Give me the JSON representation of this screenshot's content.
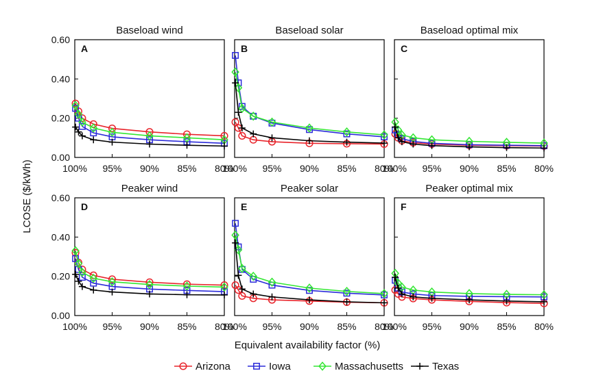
{
  "figure": {
    "ylabel": "LCOSE ($/kWh)",
    "xlabel": "Equivalent availability factor (%)"
  },
  "legend": [
    {
      "name": "Arizona",
      "color": "#e8232a",
      "marker": "circle"
    },
    {
      "name": "Iowa",
      "color": "#2b2bd9",
      "marker": "square"
    },
    {
      "name": "Massachusetts",
      "color": "#33e633",
      "marker": "diamond"
    },
    {
      "name": "Texas",
      "color": "#000000",
      "marker": "plus"
    }
  ],
  "axes": {
    "x_ticks": [
      100,
      95,
      90,
      85,
      80
    ],
    "x_tick_labels": [
      "100%",
      "95%",
      "90%",
      "85%",
      "80%"
    ],
    "y_ticks": [
      0,
      0.2,
      0.4,
      0.6
    ],
    "y_tick_labels": [
      "0.00",
      "0.20",
      "0.40",
      "0.60"
    ]
  },
  "chart_data": [
    {
      "type": "line",
      "title": "Baseload wind",
      "panel_letter": "A",
      "xlim": [
        100,
        80
      ],
      "ylim": [
        0,
        0.6
      ],
      "grid": false,
      "x": [
        99.9,
        99.5,
        99,
        97.5,
        95,
        90,
        85,
        80
      ],
      "series": [
        {
          "name": "Arizona",
          "values": [
            0.275,
            0.235,
            0.2,
            0.17,
            0.148,
            0.13,
            0.118,
            0.11
          ]
        },
        {
          "name": "Iowa",
          "values": [
            0.25,
            0.2,
            0.158,
            0.125,
            0.105,
            0.09,
            0.08,
            0.072
          ]
        },
        {
          "name": "Massachusetts",
          "values": [
            0.265,
            0.22,
            0.18,
            0.15,
            0.128,
            0.11,
            0.1,
            0.09
          ]
        },
        {
          "name": "Texas",
          "values": [
            0.155,
            0.13,
            0.11,
            0.09,
            0.078,
            0.068,
            0.062,
            0.058
          ]
        }
      ]
    },
    {
      "type": "line",
      "title": "Baseload solar",
      "panel_letter": "B",
      "xlim": [
        100,
        80
      ],
      "ylim": [
        0,
        0.6
      ],
      "grid": false,
      "x": [
        99.9,
        99.5,
        99,
        97.5,
        95,
        90,
        85,
        80
      ],
      "series": [
        {
          "name": "Arizona",
          "values": [
            0.18,
            0.15,
            0.11,
            0.09,
            0.08,
            0.072,
            0.07,
            0.068
          ]
        },
        {
          "name": "Iowa",
          "values": [
            0.52,
            0.38,
            0.26,
            0.21,
            0.175,
            0.142,
            0.12,
            0.105
          ]
        },
        {
          "name": "Massachusetts",
          "values": [
            0.435,
            0.355,
            0.25,
            0.21,
            0.18,
            0.15,
            0.13,
            0.115
          ]
        },
        {
          "name": "Texas",
          "values": [
            0.38,
            0.23,
            0.15,
            0.12,
            0.1,
            0.085,
            0.078,
            0.073
          ]
        }
      ]
    },
    {
      "type": "line",
      "title": "Baseload optimal mix",
      "panel_letter": "C",
      "xlim": [
        100,
        80
      ],
      "ylim": [
        0,
        0.6
      ],
      "grid": false,
      "x": [
        99.9,
        99.5,
        99,
        97.5,
        95,
        90,
        85,
        80
      ],
      "series": [
        {
          "name": "Arizona",
          "values": [
            0.12,
            0.1,
            0.085,
            0.075,
            0.068,
            0.062,
            0.06,
            0.058
          ]
        },
        {
          "name": "Iowa",
          "values": [
            0.14,
            0.115,
            0.095,
            0.082,
            0.072,
            0.065,
            0.062,
            0.06
          ]
        },
        {
          "name": "Massachusetts",
          "values": [
            0.18,
            0.14,
            0.115,
            0.1,
            0.09,
            0.082,
            0.077,
            0.073
          ]
        },
        {
          "name": "Texas",
          "values": [
            0.155,
            0.1,
            0.08,
            0.068,
            0.06,
            0.054,
            0.05,
            0.048
          ]
        }
      ]
    },
    {
      "type": "line",
      "title": "Peaker wind",
      "panel_letter": "D",
      "xlim": [
        100,
        80
      ],
      "ylim": [
        0,
        0.6
      ],
      "grid": false,
      "x": [
        99.9,
        99.5,
        99,
        97.5,
        95,
        90,
        85,
        80
      ],
      "series": [
        {
          "name": "Arizona",
          "values": [
            0.32,
            0.27,
            0.235,
            0.205,
            0.185,
            0.17,
            0.16,
            0.155
          ]
        },
        {
          "name": "Iowa",
          "values": [
            0.29,
            0.235,
            0.195,
            0.165,
            0.148,
            0.135,
            0.128,
            0.122
          ]
        },
        {
          "name": "Massachusetts",
          "values": [
            0.33,
            0.265,
            0.22,
            0.19,
            0.172,
            0.158,
            0.15,
            0.145
          ]
        },
        {
          "name": "Texas",
          "values": [
            0.21,
            0.175,
            0.148,
            0.13,
            0.12,
            0.11,
            0.106,
            0.105
          ]
        }
      ]
    },
    {
      "type": "line",
      "title": "Peaker solar",
      "panel_letter": "E",
      "xlim": [
        100,
        80
      ],
      "ylim": [
        0,
        0.6
      ],
      "grid": false,
      "x": [
        99.9,
        99.5,
        99,
        97.5,
        95,
        90,
        85,
        80
      ],
      "series": [
        {
          "name": "Arizona",
          "values": [
            0.155,
            0.13,
            0.1,
            0.088,
            0.08,
            0.074,
            0.068,
            0.065
          ]
        },
        {
          "name": "Iowa",
          "values": [
            0.47,
            0.35,
            0.235,
            0.185,
            0.155,
            0.128,
            0.114,
            0.105
          ]
        },
        {
          "name": "Massachusetts",
          "values": [
            0.41,
            0.335,
            0.24,
            0.2,
            0.17,
            0.14,
            0.123,
            0.112
          ]
        },
        {
          "name": "Texas",
          "values": [
            0.37,
            0.205,
            0.135,
            0.11,
            0.095,
            0.08,
            0.07,
            0.065
          ]
        }
      ]
    },
    {
      "type": "line",
      "title": "Peaker optimal mix",
      "panel_letter": "F",
      "xlim": [
        100,
        80
      ],
      "ylim": [
        0,
        0.6
      ],
      "grid": false,
      "x": [
        99.9,
        99.5,
        99,
        97.5,
        95,
        90,
        85,
        80
      ],
      "series": [
        {
          "name": "Arizona",
          "values": [
            0.13,
            0.11,
            0.095,
            0.087,
            0.08,
            0.072,
            0.066,
            0.062
          ]
        },
        {
          "name": "Iowa",
          "values": [
            0.18,
            0.14,
            0.12,
            0.11,
            0.102,
            0.098,
            0.096,
            0.095
          ]
        },
        {
          "name": "Massachusetts",
          "values": [
            0.215,
            0.165,
            0.145,
            0.13,
            0.12,
            0.112,
            0.108,
            0.106
          ]
        },
        {
          "name": "Texas",
          "values": [
            0.195,
            0.14,
            0.11,
            0.095,
            0.088,
            0.08,
            0.074,
            0.07
          ]
        }
      ]
    }
  ]
}
